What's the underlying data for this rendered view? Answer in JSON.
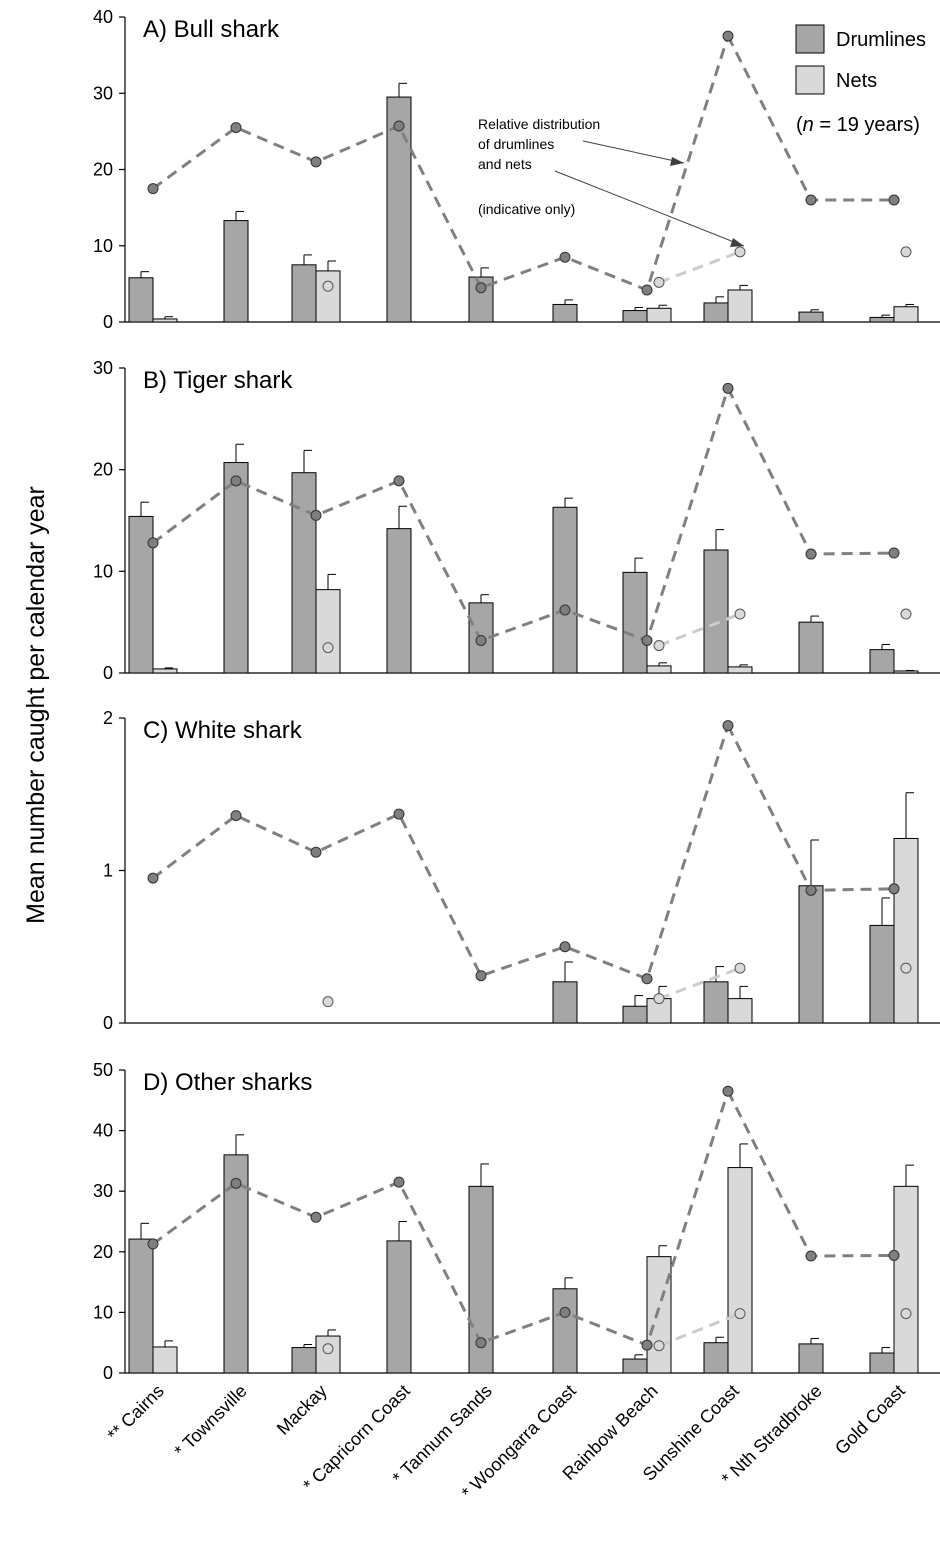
{
  "figure": {
    "ylabel": "Mean number caught per calendar year",
    "categories": [
      "** Cairns",
      "* Townsville",
      "Mackay",
      "* Capricorn Coast",
      "* Tannum Sands",
      "* Woongarra Coast",
      "Rainbow Beach",
      "Sunshine Coast",
      "* Nth Stradbroke",
      "Gold Coast"
    ],
    "legend": {
      "drumlines": "Drumlines",
      "nets": "Nets",
      "n_note_pre": "(",
      "n_note_n": "n",
      "n_note_post": " = 19 years)"
    },
    "annotation": {
      "line1": "Relative distribution",
      "line2": "of drumlines",
      "line3": "and nets",
      "line4": "(indicative only)"
    },
    "colors": {
      "drumlines": "#a6a6a6",
      "nets": "#d9d9d9",
      "drum_line": "#808080",
      "net_line": "#cccccc",
      "drum_dot": "#7f7f7f",
      "net_dot": "#d9d9d9"
    }
  },
  "chart_data": [
    {
      "type": "bar",
      "title": "A)  Bull shark",
      "ylim": [
        0,
        40
      ],
      "yticks": [
        0,
        10,
        20,
        30,
        40
      ],
      "series": [
        {
          "name": "Drumlines",
          "values": [
            5.8,
            13.3,
            7.5,
            29.5,
            5.9,
            2.3,
            1.5,
            2.5,
            1.3,
            0.6
          ],
          "errors": [
            0.8,
            1.2,
            1.3,
            1.8,
            1.2,
            0.6,
            0.4,
            0.8,
            0.3,
            0.3
          ]
        },
        {
          "name": "Nets",
          "values": [
            0.4,
            null,
            6.7,
            null,
            null,
            null,
            1.8,
            4.2,
            null,
            2.0
          ],
          "errors": [
            0.3,
            null,
            1.3,
            null,
            null,
            null,
            0.4,
            0.6,
            null,
            0.3
          ]
        }
      ],
      "distribution_drumlines": [
        17.5,
        25.5,
        21.0,
        25.7,
        4.5,
        8.5,
        4.2,
        37.5,
        16.0,
        16.0
      ],
      "distribution_nets": [
        null,
        null,
        4.7,
        null,
        null,
        null,
        5.2,
        9.2,
        null,
        9.2
      ]
    },
    {
      "type": "bar",
      "title": "B)  Tiger shark",
      "ylim": [
        0,
        30
      ],
      "yticks": [
        0,
        10,
        20,
        30
      ],
      "series": [
        {
          "name": "Drumlines",
          "values": [
            15.4,
            20.7,
            19.7,
            14.2,
            6.9,
            16.3,
            9.9,
            12.1,
            5.0,
            2.3
          ],
          "errors": [
            1.4,
            1.8,
            2.2,
            2.2,
            0.8,
            0.9,
            1.4,
            2.0,
            0.6,
            0.5
          ]
        },
        {
          "name": "Nets",
          "values": [
            0.4,
            null,
            8.2,
            null,
            null,
            null,
            0.7,
            0.6,
            null,
            0.2
          ],
          "errors": [
            0.1,
            null,
            1.5,
            null,
            null,
            null,
            0.3,
            0.2,
            null,
            0.05
          ]
        }
      ],
      "distribution_drumlines": [
        12.8,
        18.9,
        15.5,
        18.9,
        3.2,
        6.2,
        3.2,
        28.0,
        11.7,
        11.8
      ],
      "distribution_nets": [
        null,
        null,
        2.5,
        null,
        null,
        null,
        2.7,
        5.8,
        null,
        5.8
      ]
    },
    {
      "type": "bar",
      "title": "C)  White shark",
      "ylim": [
        0,
        2
      ],
      "yticks": [
        0,
        1,
        2
      ],
      "series": [
        {
          "name": "Drumlines",
          "values": [
            null,
            null,
            null,
            null,
            null,
            0.27,
            0.11,
            0.27,
            0.9,
            0.64
          ],
          "errors": [
            null,
            null,
            null,
            null,
            null,
            0.13,
            0.07,
            0.1,
            0.3,
            0.18
          ]
        },
        {
          "name": "Nets",
          "values": [
            null,
            null,
            null,
            null,
            null,
            null,
            0.16,
            0.16,
            null,
            1.21
          ],
          "errors": [
            null,
            null,
            null,
            null,
            null,
            null,
            0.08,
            0.08,
            null,
            0.3
          ]
        }
      ],
      "distribution_drumlines": [
        0.95,
        1.36,
        1.12,
        1.37,
        0.31,
        0.5,
        0.29,
        1.95,
        0.87,
        0.88
      ],
      "distribution_nets": [
        null,
        null,
        0.14,
        null,
        null,
        null,
        0.16,
        0.36,
        null,
        0.36
      ]
    },
    {
      "type": "bar",
      "title": "D)  Other sharks",
      "ylim": [
        0,
        50
      ],
      "yticks": [
        0,
        10,
        20,
        30,
        40,
        50
      ],
      "series": [
        {
          "name": "Drumlines",
          "values": [
            22.1,
            36.0,
            4.2,
            21.8,
            30.8,
            13.9,
            2.3,
            5.0,
            4.8,
            3.3
          ],
          "errors": [
            2.6,
            3.3,
            0.5,
            3.2,
            3.7,
            1.8,
            0.7,
            0.9,
            0.9,
            0.9
          ]
        },
        {
          "name": "Nets",
          "values": [
            4.3,
            null,
            6.1,
            null,
            null,
            null,
            19.2,
            33.9,
            null,
            30.8
          ],
          "errors": [
            1.0,
            null,
            1.0,
            null,
            null,
            null,
            1.8,
            3.9,
            null,
            3.5
          ]
        }
      ],
      "distribution_drumlines": [
        21.3,
        31.3,
        25.7,
        31.5,
        5.0,
        10.0,
        4.6,
        46.5,
        19.3,
        19.4
      ],
      "distribution_nets": [
        null,
        null,
        4.0,
        null,
        null,
        null,
        4.5,
        9.8,
        null,
        9.8
      ]
    }
  ]
}
